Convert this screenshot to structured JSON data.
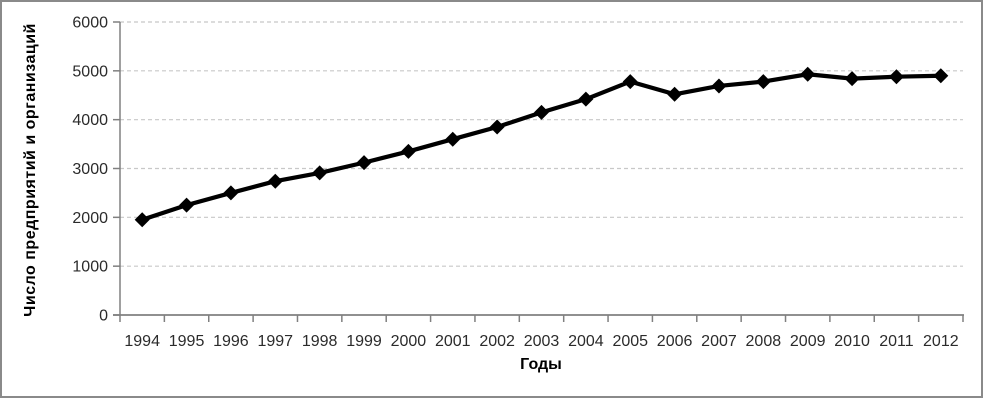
{
  "chart_data": {
    "type": "line",
    "xlabel": "Годы",
    "ylabel": "Число предприятий и организаций",
    "categories": [
      "1994",
      "1995",
      "1996",
      "1997",
      "1998",
      "1999",
      "2000",
      "2001",
      "2002",
      "2003",
      "2004",
      "2005",
      "2006",
      "2007",
      "2008",
      "2009",
      "2010",
      "2011",
      "2012"
    ],
    "series": [
      {
        "name": "Число предприятий и организаций",
        "values": [
          1950,
          2250,
          2500,
          2740,
          2910,
          3120,
          3350,
          3600,
          3850,
          4150,
          4420,
          4780,
          4520,
          4690,
          4780,
          4930,
          4840,
          4880,
          4900
        ]
      }
    ],
    "ylim": [
      0,
      6000
    ],
    "yticks": [
      0,
      1000,
      2000,
      3000,
      4000,
      5000,
      6000
    ],
    "grid": "horizontal-dashed",
    "legend": "none",
    "marker": "diamond",
    "colors": {
      "line": "#000000",
      "marker": "#000000",
      "grid": "#c8c8c8",
      "axis": "#808080",
      "tick_label": "#2b2b2b",
      "frame_border": "#8a8a8a",
      "background": "#ffffff"
    }
  }
}
